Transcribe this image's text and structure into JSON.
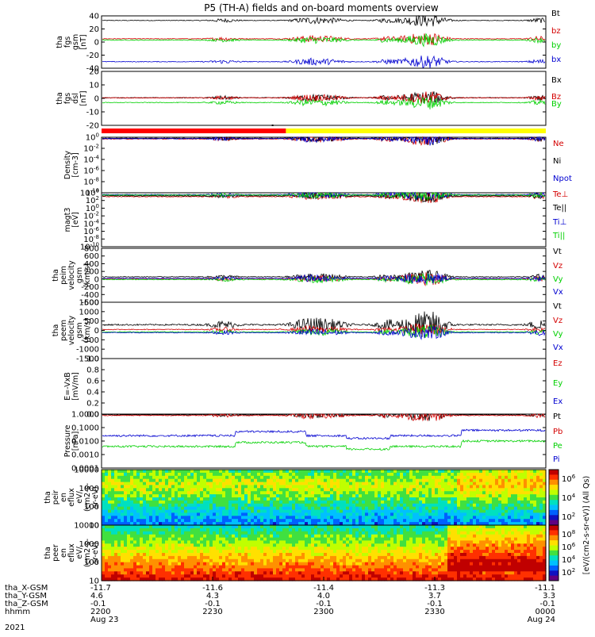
{
  "title": "P5 (TH-A) fields and on-board moments overview",
  "colors": {
    "black": "#000000",
    "red": "#d40000",
    "green": "#00d000",
    "blue": "#0000d0",
    "yellow": "#ffff00",
    "barred": "#ff0000"
  },
  "time_axis": {
    "range_hours": [
      22.0,
      24.0
    ],
    "ticks": [
      {
        "x_gsm": "-11.7",
        "y_gsm": "4.6",
        "z_gsm": "-0.1",
        "hhmm": "2200",
        "date": "Aug 23",
        "t": 22.0
      },
      {
        "x_gsm": "-11.6",
        "y_gsm": "4.3",
        "z_gsm": "-0.1",
        "hhmm": "2230",
        "date": "",
        "t": 22.5
      },
      {
        "x_gsm": "-11.4",
        "y_gsm": "4.0",
        "z_gsm": "-0.1",
        "hhmm": "2300",
        "date": "",
        "t": 23.0
      },
      {
        "x_gsm": "-11.3",
        "y_gsm": "3.7",
        "z_gsm": "-0.1",
        "hhmm": "2330",
        "date": "",
        "t": 23.5
      },
      {
        "x_gsm": "-11.1",
        "y_gsm": "3.3",
        "z_gsm": "-0.1",
        "hhmm": "0000",
        "date": "Aug 24",
        "t": 24.0
      }
    ],
    "row_labels": [
      "tha_X-GSM",
      "tha_Y-GSM",
      "tha_Z-GSM",
      "hhmm",
      "2021"
    ]
  },
  "mode_bar": {
    "red_until_hours": 22.83,
    "marker_hours": 22.77
  },
  "chart_data": [
    {
      "type": "line",
      "panel": "fgs_gsm",
      "ylabel": [
        "tha",
        "fgs",
        "gsm",
        "[nT]"
      ],
      "ylim": [
        -40,
        40
      ],
      "yticks": [
        "40",
        "20",
        "0",
        "-20",
        "-40"
      ],
      "series": [
        {
          "name": "Bt",
          "color": "black",
          "base": 33
        },
        {
          "name": "bz",
          "color": "red",
          "base": 5
        },
        {
          "name": "by",
          "color": "green",
          "base": 3
        },
        {
          "name": "bx",
          "color": "blue",
          "base": -30
        }
      ]
    },
    {
      "type": "line",
      "panel": "fgs_dsl",
      "ylabel": [
        "tha",
        "fgs",
        "dsl",
        "[nT]"
      ],
      "ylim": [
        -25,
        20
      ],
      "yticks": [
        "20",
        "10",
        "0",
        "-10",
        "-20"
      ],
      "series": [
        {
          "name": "Bx",
          "color": "black",
          "base": -2
        },
        {
          "name": "Bz",
          "color": "red",
          "base": -2
        },
        {
          "name": "By",
          "color": "green",
          "base": -6
        }
      ]
    },
    {
      "type": "line",
      "panel": "density",
      "ylabel": [
        "Density",
        "[cm-3]"
      ],
      "ylog": true,
      "ylim": [
        -10,
        0
      ],
      "yticks": [
        "10^0",
        "10^-2",
        "10^-4",
        "10^-6",
        "10^-8",
        "10^-10"
      ],
      "series": [
        {
          "name": "Ne",
          "color": "red",
          "base": -0.3
        },
        {
          "name": "Ni",
          "color": "black",
          "base": -0.2
        },
        {
          "name": "Npot",
          "color": "blue",
          "base": -0.25
        }
      ]
    },
    {
      "type": "line",
      "panel": "temperature",
      "ylabel": [
        "magt3",
        "[eV]"
      ],
      "ylog": true,
      "ylim": [
        -10,
        4
      ],
      "yticks": [
        "10^4",
        "10^2",
        "10^0",
        "10^-2",
        "10^-4",
        "10^-6",
        "10^-8",
        "10^-10"
      ],
      "series": [
        {
          "name": "Te⊥",
          "color": "red",
          "base": 3.0
        },
        {
          "name": "Te||",
          "color": "black",
          "base": 3.2
        },
        {
          "name": "Ti⊥",
          "color": "blue",
          "base": 3.5
        },
        {
          "name": "Ti||",
          "color": "green",
          "base": 3.4
        }
      ]
    },
    {
      "type": "line",
      "panel": "peim_velocity",
      "ylabel": [
        "tha",
        "peim",
        "velocity",
        "gsm",
        "[km/s]"
      ],
      "ylim": [
        -600,
        800
      ],
      "yticks": [
        "800",
        "600",
        "400",
        "200",
        "0",
        "-200",
        "-400",
        "-600"
      ],
      "series": [
        {
          "name": "Vt",
          "color": "black",
          "base": 60
        },
        {
          "name": "Vz",
          "color": "red",
          "base": 10
        },
        {
          "name": "Vy",
          "color": "green",
          "base": -10
        },
        {
          "name": "Vx",
          "color": "blue",
          "base": 20
        }
      ]
    },
    {
      "type": "line",
      "panel": "peem_velocity",
      "ylabel": [
        "tha",
        "peem",
        "velocity",
        "gsm",
        "[km/s]"
      ],
      "ylim": [
        -1500,
        1500
      ],
      "yticks": [
        "1500",
        "1000",
        "500",
        "0",
        "-500",
        "-1000",
        "-1500"
      ],
      "series": [
        {
          "name": "Vt",
          "color": "black",
          "base": 300
        },
        {
          "name": "Vz",
          "color": "red",
          "base": 50
        },
        {
          "name": "Vy",
          "color": "green",
          "base": -80
        },
        {
          "name": "Vx",
          "color": "blue",
          "base": -120
        }
      ]
    },
    {
      "type": "line",
      "panel": "efield",
      "ylabel": [
        "E=-VxB",
        "[mV/m]"
      ],
      "ylim": [
        0,
        1
      ],
      "yticks": [
        "1.0",
        "0.8",
        "0.6",
        "0.4",
        "0.2",
        "0.0"
      ],
      "series": [
        {
          "name": "Ez",
          "color": "red"
        },
        {
          "name": "Ey",
          "color": "green"
        },
        {
          "name": "Ex",
          "color": "blue"
        }
      ]
    },
    {
      "type": "line",
      "panel": "pressure",
      "ylabel": [
        "Pressure",
        "[nPa]"
      ],
      "ylog": true,
      "ylim": [
        -4,
        0
      ],
      "yticks": [
        "1.0000",
        "0.1000",
        "0.0100",
        "0.0010",
        "0.0001"
      ],
      "series": [
        {
          "name": "Pt",
          "color": "black",
          "base": -0.05
        },
        {
          "name": "Pb",
          "color": "red",
          "base": -0.1
        },
        {
          "name": "Pe",
          "color": "green",
          "base": -2.4
        },
        {
          "name": "Pi",
          "color": "blue",
          "base": -1.6
        }
      ]
    },
    {
      "type": "heatmap",
      "panel": "peir_spectrogram",
      "ylabel": [
        "tha",
        "peir",
        "en",
        "eflux",
        "eV/",
        "(cm2-s-",
        "sr-eV)"
      ],
      "ylog": true,
      "ylim": [
        0.7,
        4.5
      ],
      "yticks": [
        "10000",
        "1000",
        "100",
        "10"
      ]
    },
    {
      "type": "heatmap",
      "panel": "peer_spectrogram",
      "ylabel": [
        "tha",
        "peer",
        "en",
        "eflux",
        "eV/",
        "(cm2-s-",
        "sr-eV)"
      ],
      "ylog": true,
      "ylim": [
        0.7,
        4.5
      ],
      "yticks": [
        "10000",
        "1000",
        "100",
        "10"
      ]
    }
  ],
  "colorbars": [
    {
      "label": "[eV/(cm2-s-sr-eV)] (All Qs)",
      "ticks": [
        "10^6",
        "10^4",
        "10^2"
      ],
      "range": [
        1,
        7
      ]
    },
    {
      "label": "[eV/(cm2-s-sr-eV)] (All Qs)",
      "ticks": [
        "10^8",
        "10^6",
        "10^4",
        "10^2"
      ],
      "range": [
        1,
        9
      ]
    }
  ]
}
